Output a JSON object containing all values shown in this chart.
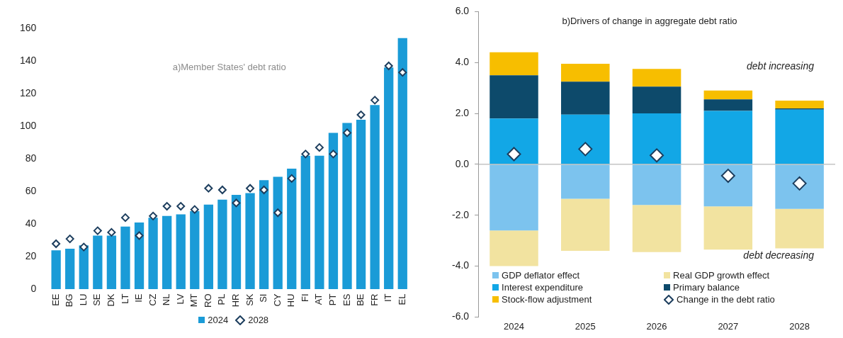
{
  "chart_data": [
    {
      "type": "bar",
      "title": "a)Member States' debt ratio",
      "categories": [
        "EE",
        "BG",
        "LU",
        "SE",
        "DK",
        "LT",
        "IE",
        "CZ",
        "NL",
        "LV",
        "MT",
        "RO",
        "PL",
        "HR",
        "SK",
        "SI",
        "CY",
        "HU",
        "FI",
        "AT",
        "PT",
        "ES",
        "BE",
        "FR",
        "IT",
        "EL"
      ],
      "series": [
        {
          "name": "2024",
          "color": "#1a9bd7",
          "values": [
            24,
            25,
            27,
            33,
            33,
            38.5,
            41,
            44,
            45,
            46,
            48,
            52,
            55,
            58,
            59,
            67,
            69,
            74,
            82,
            82,
            96,
            102,
            104,
            113,
            136,
            154
          ]
        },
        {
          "name": "2028",
          "type": "scatter",
          "color": "#1d3e5e",
          "values": [
            28,
            31,
            26,
            36,
            35,
            44,
            33,
            45,
            51,
            51,
            49,
            62,
            61,
            53,
            62,
            61,
            47,
            68,
            83,
            87,
            83,
            96,
            107,
            116,
            137,
            133
          ]
        }
      ],
      "ylim": [
        0,
        160
      ],
      "yticks": [
        0,
        20,
        40,
        60,
        80,
        100,
        120,
        140,
        160
      ],
      "grid": false,
      "legend": "bottom",
      "marker": "diamond"
    },
    {
      "type": "bar",
      "title": "b)Drivers of change in aggregate debt ratio",
      "categories": [
        "2024",
        "2025",
        "2026",
        "2027",
        "2028"
      ],
      "stacked": true,
      "series": [
        {
          "name": "GDP deflator effect",
          "color": "#7cc3ee",
          "values": [
            -2.6,
            -1.35,
            -1.6,
            -1.65,
            -1.75
          ]
        },
        {
          "name": "Real GDP growth effect",
          "color": "#f2e3a0",
          "values": [
            -1.4,
            -2.05,
            -1.85,
            -1.7,
            -1.55
          ]
        },
        {
          "name": "Interest expenditure",
          "color": "#12a7e6",
          "values": [
            1.8,
            1.95,
            2.0,
            2.1,
            2.15
          ]
        },
        {
          "name": "Primary balance",
          "color": "#0d4a6b",
          "values": [
            1.7,
            1.3,
            1.05,
            0.45,
            0.05
          ]
        },
        {
          "name": "Stock-flow adjustment",
          "color": "#f7be00",
          "values": [
            0.9,
            0.7,
            0.7,
            0.35,
            0.3
          ]
        },
        {
          "name": "Change in the debt ratio",
          "type": "scatter",
          "color": "#1d3e5e",
          "values": [
            0.4,
            0.6,
            0.35,
            -0.45,
            -0.75
          ]
        }
      ],
      "ylim": [
        -6,
        6
      ],
      "yticks": [
        {
          "value": -6,
          "label": "-6.0"
        },
        {
          "value": -4,
          "label": "-4.0"
        },
        {
          "value": -2,
          "label": "-2.0"
        },
        {
          "value": 0,
          "label": "0.0"
        },
        {
          "value": 2,
          "label": "2.0"
        },
        {
          "value": 4,
          "label": "4.0"
        },
        {
          "value": 6,
          "label": "6.0"
        }
      ],
      "ref_lines": [
        {
          "axis": "y",
          "value": 0,
          "color": "#a6a6a6"
        }
      ],
      "annotations": [
        "debt increasing",
        "debt decreasing"
      ],
      "grid": false,
      "legend": "bottom",
      "marker": "diamond"
    }
  ]
}
